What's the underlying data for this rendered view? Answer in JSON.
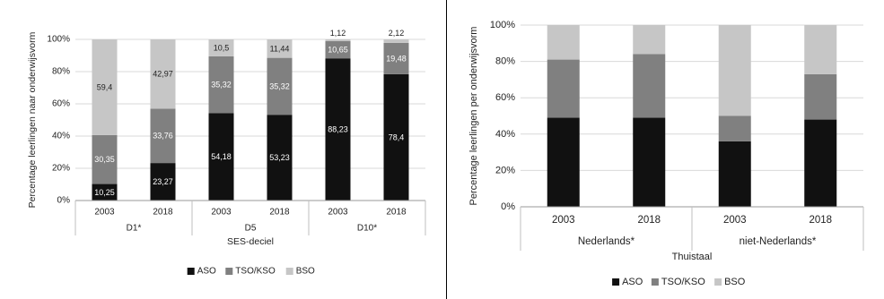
{
  "chart_data": [
    {
      "type": "bar",
      "stacked": true,
      "categories": [
        "2003",
        "2018",
        "2003",
        "2018",
        "2003",
        "2018"
      ],
      "groups": [
        {
          "label": "D1*",
          "members": 2
        },
        {
          "label": "D5",
          "members": 2
        },
        {
          "label": "D10*",
          "members": 2
        }
      ],
      "series": [
        {
          "name": "ASO",
          "color": "#111111",
          "label_color": "#ffffff",
          "values": [
            10.25,
            23.27,
            54.18,
            53.23,
            88.23,
            78.4
          ],
          "labels": [
            "10,25",
            "23,27",
            "54,18",
            "53,23",
            "88,23",
            "78,4"
          ]
        },
        {
          "name": "TSO/KSO",
          "color": "#808080",
          "label_color": "#ffffff",
          "values": [
            30.35,
            33.76,
            35.32,
            35.32,
            10.65,
            19.48
          ],
          "labels": [
            "30,35",
            "33,76",
            "35,32",
            "35,32",
            "10,65",
            "19,48"
          ]
        },
        {
          "name": "BSO",
          "color": "#c6c6c6",
          "label_color": "#222222",
          "values": [
            59.4,
            42.97,
            10.5,
            11.44,
            1.12,
            2.12
          ],
          "labels": [
            "59,4",
            "42,97",
            "10,5",
            "11,44",
            "1,12",
            "2,12"
          ]
        }
      ],
      "xlabel": "SES-deciel",
      "ylabel": "Percentage leerlingen naar onderwijsvorm",
      "ylim": [
        0,
        100
      ],
      "yticks": [
        "0%",
        "20%",
        "40%",
        "60%",
        "80%",
        "100%"
      ],
      "grid": true,
      "legend_position": "bottom"
    },
    {
      "type": "bar",
      "stacked": true,
      "categories": [
        "2003",
        "2018",
        "2003",
        "2018"
      ],
      "groups": [
        {
          "label": "Nederlands*",
          "members": 2
        },
        {
          "label": "niet-Nederlands*",
          "members": 2
        }
      ],
      "series": [
        {
          "name": "ASO",
          "color": "#111111",
          "values": [
            49,
            49,
            36,
            48
          ]
        },
        {
          "name": "TSO/KSO",
          "color": "#808080",
          "values": [
            32,
            35,
            14,
            25
          ]
        },
        {
          "name": "BSO",
          "color": "#c6c6c6",
          "values": [
            19,
            16,
            50,
            27
          ]
        }
      ],
      "xlabel": "Thuistaal",
      "ylabel": "Percentage leerlingen per onderwijsvorm",
      "ylim": [
        0,
        100
      ],
      "yticks": [
        "0%",
        "20%",
        "40%",
        "60%",
        "80%",
        "100%"
      ],
      "grid": true,
      "legend_position": "bottom"
    }
  ]
}
